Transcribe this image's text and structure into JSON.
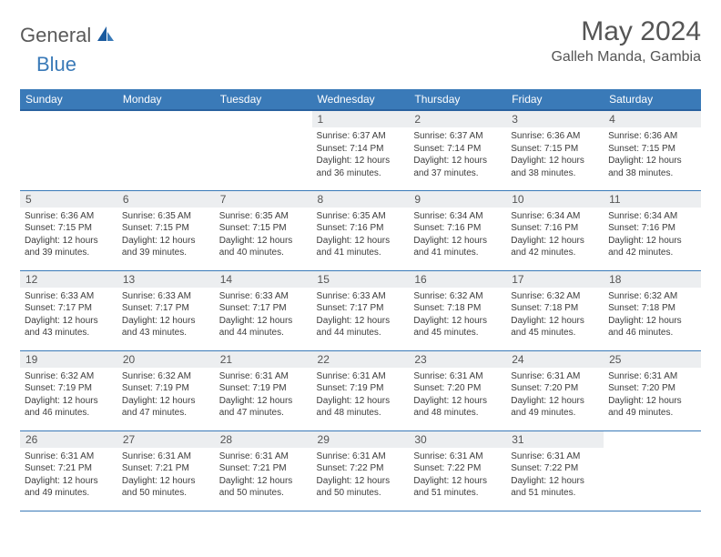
{
  "logo": {
    "text1": "General",
    "text2": "Blue"
  },
  "title": "May 2024",
  "location": "Galleh Manda, Gambia",
  "colors": {
    "header_bg": "#3a7ab8",
    "header_border": "#2962a0",
    "daynum_bg": "#eceef0",
    "row_border": "#3a7ab8",
    "title_color": "#555555",
    "text_color": "#3c3c3c"
  },
  "day_headers": [
    "Sunday",
    "Monday",
    "Tuesday",
    "Wednesday",
    "Thursday",
    "Friday",
    "Saturday"
  ],
  "weeks": [
    [
      {
        "n": "",
        "sr": "",
        "ss": "",
        "dl": ""
      },
      {
        "n": "",
        "sr": "",
        "ss": "",
        "dl": ""
      },
      {
        "n": "",
        "sr": "",
        "ss": "",
        "dl": ""
      },
      {
        "n": "1",
        "sr": "6:37 AM",
        "ss": "7:14 PM",
        "dl": "12 hours and 36 minutes."
      },
      {
        "n": "2",
        "sr": "6:37 AM",
        "ss": "7:14 PM",
        "dl": "12 hours and 37 minutes."
      },
      {
        "n": "3",
        "sr": "6:36 AM",
        "ss": "7:15 PM",
        "dl": "12 hours and 38 minutes."
      },
      {
        "n": "4",
        "sr": "6:36 AM",
        "ss": "7:15 PM",
        "dl": "12 hours and 38 minutes."
      }
    ],
    [
      {
        "n": "5",
        "sr": "6:36 AM",
        "ss": "7:15 PM",
        "dl": "12 hours and 39 minutes."
      },
      {
        "n": "6",
        "sr": "6:35 AM",
        "ss": "7:15 PM",
        "dl": "12 hours and 39 minutes."
      },
      {
        "n": "7",
        "sr": "6:35 AM",
        "ss": "7:15 PM",
        "dl": "12 hours and 40 minutes."
      },
      {
        "n": "8",
        "sr": "6:35 AM",
        "ss": "7:16 PM",
        "dl": "12 hours and 41 minutes."
      },
      {
        "n": "9",
        "sr": "6:34 AM",
        "ss": "7:16 PM",
        "dl": "12 hours and 41 minutes."
      },
      {
        "n": "10",
        "sr": "6:34 AM",
        "ss": "7:16 PM",
        "dl": "12 hours and 42 minutes."
      },
      {
        "n": "11",
        "sr": "6:34 AM",
        "ss": "7:16 PM",
        "dl": "12 hours and 42 minutes."
      }
    ],
    [
      {
        "n": "12",
        "sr": "6:33 AM",
        "ss": "7:17 PM",
        "dl": "12 hours and 43 minutes."
      },
      {
        "n": "13",
        "sr": "6:33 AM",
        "ss": "7:17 PM",
        "dl": "12 hours and 43 minutes."
      },
      {
        "n": "14",
        "sr": "6:33 AM",
        "ss": "7:17 PM",
        "dl": "12 hours and 44 minutes."
      },
      {
        "n": "15",
        "sr": "6:33 AM",
        "ss": "7:17 PM",
        "dl": "12 hours and 44 minutes."
      },
      {
        "n": "16",
        "sr": "6:32 AM",
        "ss": "7:18 PM",
        "dl": "12 hours and 45 minutes."
      },
      {
        "n": "17",
        "sr": "6:32 AM",
        "ss": "7:18 PM",
        "dl": "12 hours and 45 minutes."
      },
      {
        "n": "18",
        "sr": "6:32 AM",
        "ss": "7:18 PM",
        "dl": "12 hours and 46 minutes."
      }
    ],
    [
      {
        "n": "19",
        "sr": "6:32 AM",
        "ss": "7:19 PM",
        "dl": "12 hours and 46 minutes."
      },
      {
        "n": "20",
        "sr": "6:32 AM",
        "ss": "7:19 PM",
        "dl": "12 hours and 47 minutes."
      },
      {
        "n": "21",
        "sr": "6:31 AM",
        "ss": "7:19 PM",
        "dl": "12 hours and 47 minutes."
      },
      {
        "n": "22",
        "sr": "6:31 AM",
        "ss": "7:19 PM",
        "dl": "12 hours and 48 minutes."
      },
      {
        "n": "23",
        "sr": "6:31 AM",
        "ss": "7:20 PM",
        "dl": "12 hours and 48 minutes."
      },
      {
        "n": "24",
        "sr": "6:31 AM",
        "ss": "7:20 PM",
        "dl": "12 hours and 49 minutes."
      },
      {
        "n": "25",
        "sr": "6:31 AM",
        "ss": "7:20 PM",
        "dl": "12 hours and 49 minutes."
      }
    ],
    [
      {
        "n": "26",
        "sr": "6:31 AM",
        "ss": "7:21 PM",
        "dl": "12 hours and 49 minutes."
      },
      {
        "n": "27",
        "sr": "6:31 AM",
        "ss": "7:21 PM",
        "dl": "12 hours and 50 minutes."
      },
      {
        "n": "28",
        "sr": "6:31 AM",
        "ss": "7:21 PM",
        "dl": "12 hours and 50 minutes."
      },
      {
        "n": "29",
        "sr": "6:31 AM",
        "ss": "7:22 PM",
        "dl": "12 hours and 50 minutes."
      },
      {
        "n": "30",
        "sr": "6:31 AM",
        "ss": "7:22 PM",
        "dl": "12 hours and 51 minutes."
      },
      {
        "n": "31",
        "sr": "6:31 AM",
        "ss": "7:22 PM",
        "dl": "12 hours and 51 minutes."
      },
      {
        "n": "",
        "sr": "",
        "ss": "",
        "dl": ""
      }
    ]
  ],
  "labels": {
    "sunrise": "Sunrise:",
    "sunset": "Sunset:",
    "daylight": "Daylight:"
  }
}
